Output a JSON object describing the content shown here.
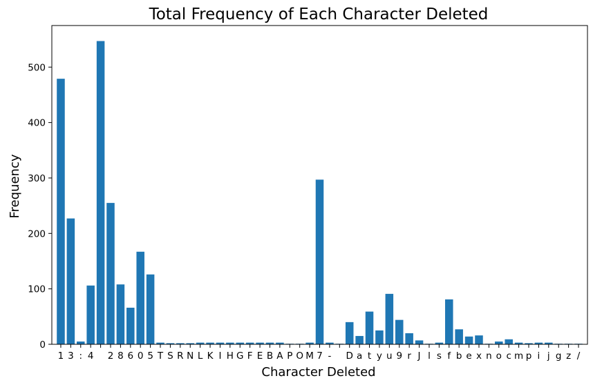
{
  "chart_data": {
    "type": "bar",
    "title": "Total Frequency of Each Character Deleted",
    "xlabel": "Character Deleted",
    "ylabel": "Frequency",
    "ylim": [
      0,
      575
    ],
    "yticks": [
      0,
      100,
      200,
      300,
      400,
      500
    ],
    "categories": [
      "1",
      "3",
      ":",
      "4",
      " ",
      "2",
      "8",
      "6",
      "0",
      "5",
      "T",
      "S",
      "R",
      "N",
      "L",
      "K",
      "I",
      "H",
      "G",
      "F",
      "E",
      "B",
      "A",
      "P",
      "O",
      "M",
      "7",
      "-",
      " ",
      "D",
      "a",
      "t",
      "y",
      "u",
      "9",
      "r",
      "J",
      "l",
      "s",
      "f",
      "b",
      "e",
      "x",
      "n",
      "o",
      "c",
      "m",
      "p",
      "i",
      "j",
      "g",
      "z",
      "/"
    ],
    "values": [
      479,
      227,
      5,
      106,
      547,
      255,
      108,
      66,
      167,
      126,
      3,
      2,
      2,
      2,
      3,
      3,
      3,
      3,
      3,
      3,
      3,
      3,
      3,
      1,
      1,
      3,
      297,
      3,
      1,
      40,
      15,
      59,
      25,
      91,
      44,
      20,
      7,
      1,
      3,
      81,
      27,
      14,
      16,
      1,
      5,
      9,
      3,
      2,
      3,
      3,
      1,
      1,
      1
    ],
    "bar_color": "#1f77b4",
    "grid": false,
    "legend": "none"
  }
}
